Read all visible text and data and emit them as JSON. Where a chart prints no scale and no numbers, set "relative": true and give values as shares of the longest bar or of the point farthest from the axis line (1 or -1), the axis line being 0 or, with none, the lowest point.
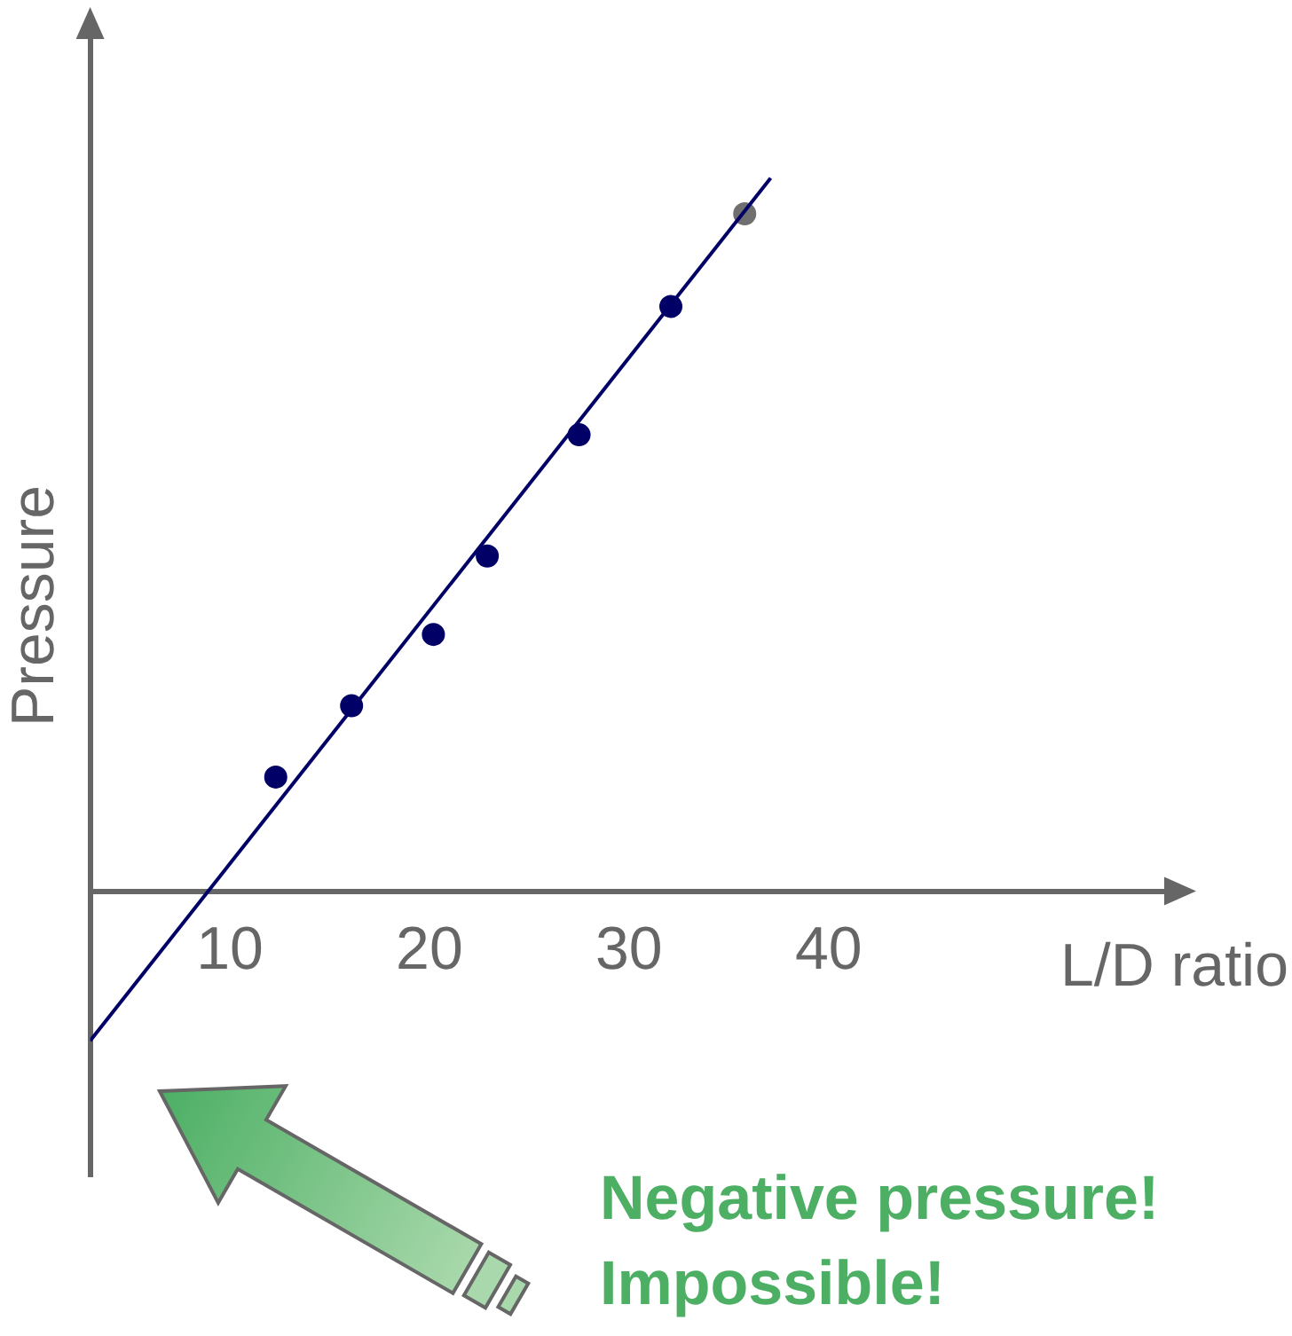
{
  "chart_data": {
    "type": "scatter",
    "xlabel": "L/D ratio",
    "ylabel": "Pressure",
    "relative": true,
    "xlim": [
      3,
      57
    ],
    "xticks": [
      10,
      20,
      30,
      40
    ],
    "grid": false,
    "legend": false,
    "marker": "circle",
    "series": [
      {
        "type": "line",
        "marker": "none",
        "color": "#000066",
        "x": [
          3.0,
          37.1
        ],
        "values": [
          -0.21,
          1
        ]
      },
      {
        "color": "#000066",
        "x": [
          12.3,
          16.1,
          20.2,
          22.9,
          27.5,
          32.1
        ],
        "values": [
          0.16,
          0.26,
          0.36,
          0.47,
          0.64,
          0.82
        ]
      },
      {
        "color": "#707070",
        "x": [
          35.8
        ],
        "values": [
          0.95
        ]
      }
    ],
    "annotations": [
      "Negative pressure! Impossible!"
    ]
  }
}
